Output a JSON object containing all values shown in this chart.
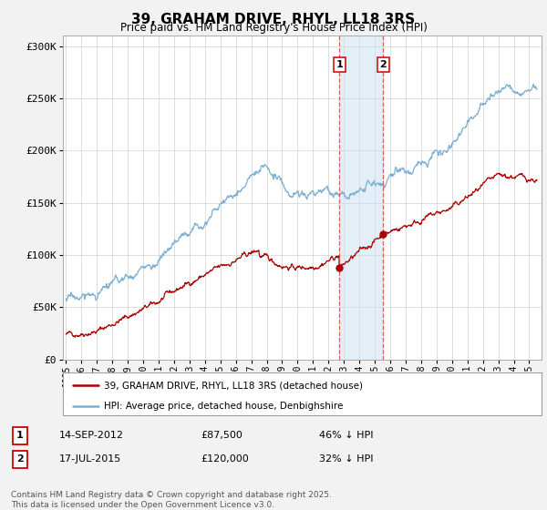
{
  "title": "39, GRAHAM DRIVE, RHYL, LL18 3RS",
  "subtitle": "Price paid vs. HM Land Registry's House Price Index (HPI)",
  "hpi_color": "#7bafd4",
  "price_color": "#aa0000",
  "marker1_date": 2012.71,
  "marker1_price": 87500,
  "marker2_date": 2015.54,
  "marker2_price": 120000,
  "annotation1": {
    "label": "1",
    "date": "14-SEP-2012",
    "price": "£87,500",
    "pct": "46% ↓ HPI"
  },
  "annotation2": {
    "label": "2",
    "date": "17-JUL-2015",
    "price": "£120,000",
    "pct": "32% ↓ HPI"
  },
  "legend_line1": "39, GRAHAM DRIVE, RHYL, LL18 3RS (detached house)",
  "legend_line2": "HPI: Average price, detached house, Denbighshire",
  "footer": "Contains HM Land Registry data © Crown copyright and database right 2025.\nThis data is licensed under the Open Government Licence v3.0.",
  "background_color": "#f2f2f2",
  "plot_bg_color": "#ffffff",
  "ylim": [
    0,
    310000
  ],
  "yticks": [
    0,
    50000,
    100000,
    150000,
    200000,
    250000,
    300000
  ],
  "ytick_labels": [
    "£0",
    "£50K",
    "£100K",
    "£150K",
    "£200K",
    "£250K",
    "£300K"
  ],
  "xlim_start": 1994.8,
  "xlim_end": 2025.8
}
